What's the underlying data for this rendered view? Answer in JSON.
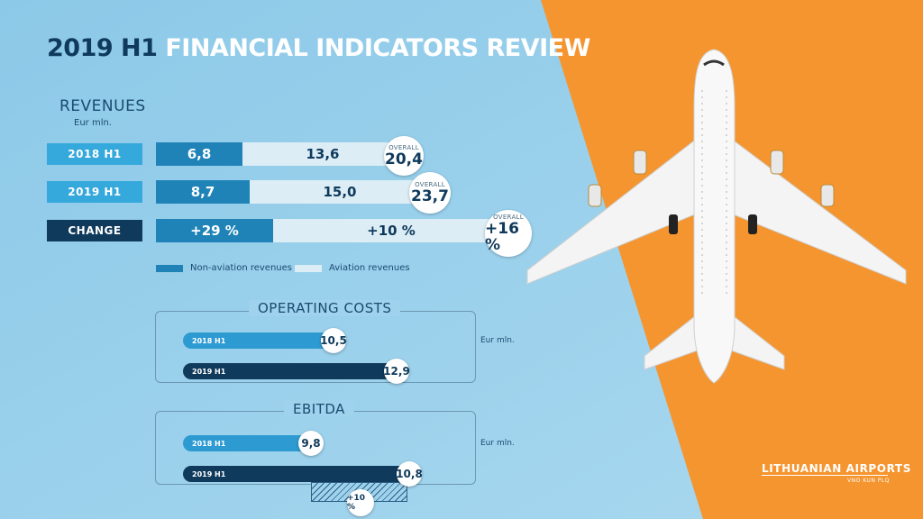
{
  "title": {
    "year": "2019 H1",
    "text": "FINANCIAL INDICATORS REVIEW"
  },
  "colors": {
    "dark": "#0f3a5c",
    "mid": "#1f83b8",
    "light": "#dcedf5",
    "sky": "#9fd2ec",
    "orange": "#f5952f"
  },
  "revenues": {
    "heading": "REVENUES",
    "unit": "Eur mln.",
    "rows": [
      {
        "label": "2018 H1",
        "non_aviation": "6,8",
        "aviation": "13,6",
        "overall_caption": "OVERALL",
        "overall": "20,4"
      },
      {
        "label": "2019 H1",
        "non_aviation": "8,7",
        "aviation": "15,0",
        "overall_caption": "OVERALL",
        "overall": "23,7"
      },
      {
        "label": "CHANGE",
        "non_aviation": "+29 %",
        "aviation": "+10 %",
        "overall_caption": "OVERALL",
        "overall": "+16 %"
      }
    ],
    "legend": {
      "non_aviation": "Non-aviation revenues",
      "aviation": "Aviation revenues"
    }
  },
  "operating_costs": {
    "heading": "OPERATING COSTS",
    "unit": "Eur mln.",
    "rows": [
      {
        "label": "2018 H1",
        "value": "10,5"
      },
      {
        "label": "2019 H1",
        "value": "12,9"
      }
    ]
  },
  "ebitda": {
    "heading": "EBITDA",
    "unit": "Eur mln.",
    "rows": [
      {
        "label": "2018 H1",
        "value": "9,8"
      },
      {
        "label": "2019 H1",
        "value": "10,8"
      }
    ],
    "change": "+10 %"
  },
  "logo": {
    "name": "LITHUANIAN AIRPORTS",
    "codes": "VNO KUN PLQ"
  },
  "chart_data": [
    {
      "type": "bar",
      "title": "REVENUES",
      "ylabel": "Eur mln.",
      "categories": [
        "2018 H1",
        "2019 H1"
      ],
      "series": [
        {
          "name": "Non-aviation revenues",
          "values": [
            6.8,
            8.7
          ]
        },
        {
          "name": "Aviation revenues",
          "values": [
            13.6,
            15.0
          ]
        }
      ],
      "totals": [
        20.4,
        23.7
      ],
      "change": {
        "non_aviation": "+29 %",
        "aviation": "+10 %",
        "overall": "+16 %"
      }
    },
    {
      "type": "bar",
      "title": "OPERATING COSTS",
      "ylabel": "Eur mln.",
      "categories": [
        "2018 H1",
        "2019 H1"
      ],
      "values": [
        10.5,
        12.9
      ]
    },
    {
      "type": "bar",
      "title": "EBITDA",
      "ylabel": "Eur mln.",
      "categories": [
        "2018 H1",
        "2019 H1"
      ],
      "values": [
        9.8,
        10.8
      ],
      "change": "+10 %"
    }
  ]
}
